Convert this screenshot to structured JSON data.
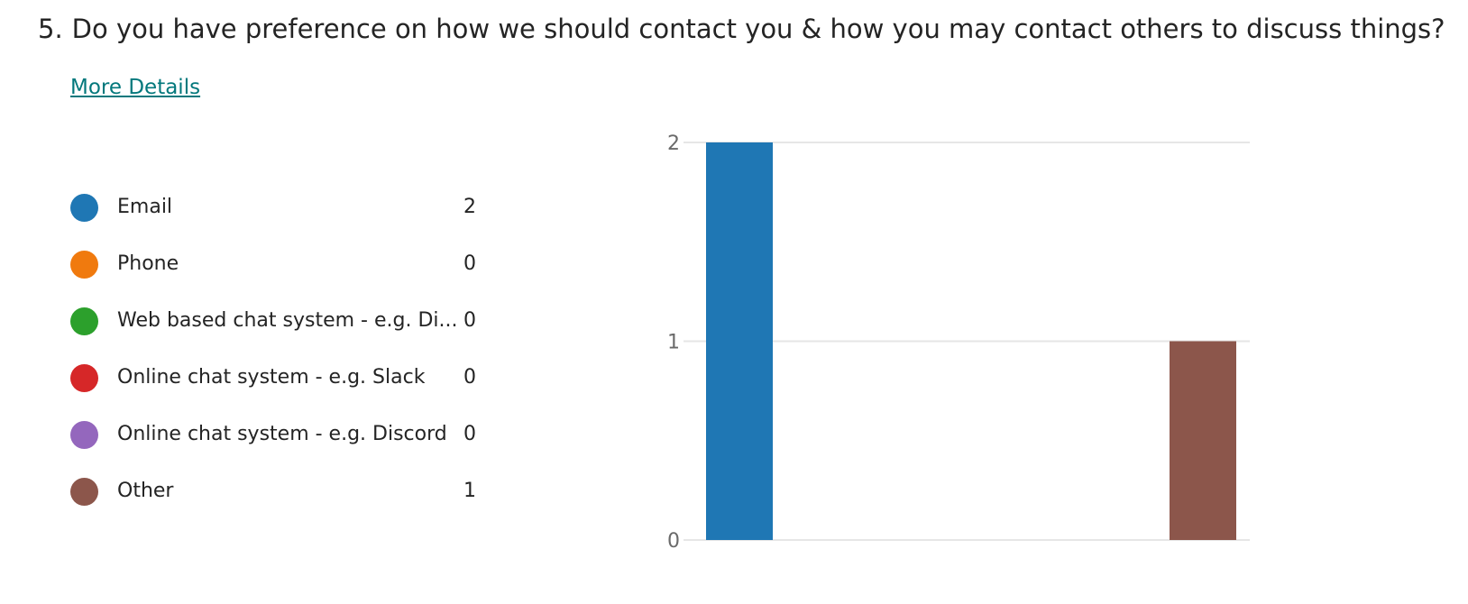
{
  "question": {
    "number": "5.",
    "text": "Do you have preference on how we should contact you & how you may contact others to discuss things?"
  },
  "more_details_label": "More Details",
  "legend": [
    {
      "label": "Email",
      "count": "2",
      "color": "#1f77b4"
    },
    {
      "label": "Phone",
      "count": "0",
      "color": "#f07a0e"
    },
    {
      "label": "Web based chat system - e.g. Di...",
      "count": "0",
      "color": "#2ca02c"
    },
    {
      "label": "Online chat system - e.g. Slack",
      "count": "0",
      "color": "#d62728"
    },
    {
      "label": "Online chat system - e.g. Discord",
      "count": "0",
      "color": "#9467bd"
    },
    {
      "label": "Other",
      "count": "1",
      "color": "#8c564b"
    }
  ],
  "chart_data": {
    "type": "bar",
    "categories": [
      "Email",
      "Phone",
      "Web based chat system - e.g. Di...",
      "Online chat system - e.g. Slack",
      "Online chat system - e.g. Discord",
      "Other"
    ],
    "values": [
      2,
      0,
      0,
      0,
      0,
      1
    ],
    "colors": [
      "#1f77b4",
      "#f07a0e",
      "#2ca02c",
      "#d62728",
      "#9467bd",
      "#8c564b"
    ],
    "ylim": [
      0,
      2
    ],
    "yticks": [
      "0",
      "1",
      "2"
    ],
    "grid": true
  }
}
